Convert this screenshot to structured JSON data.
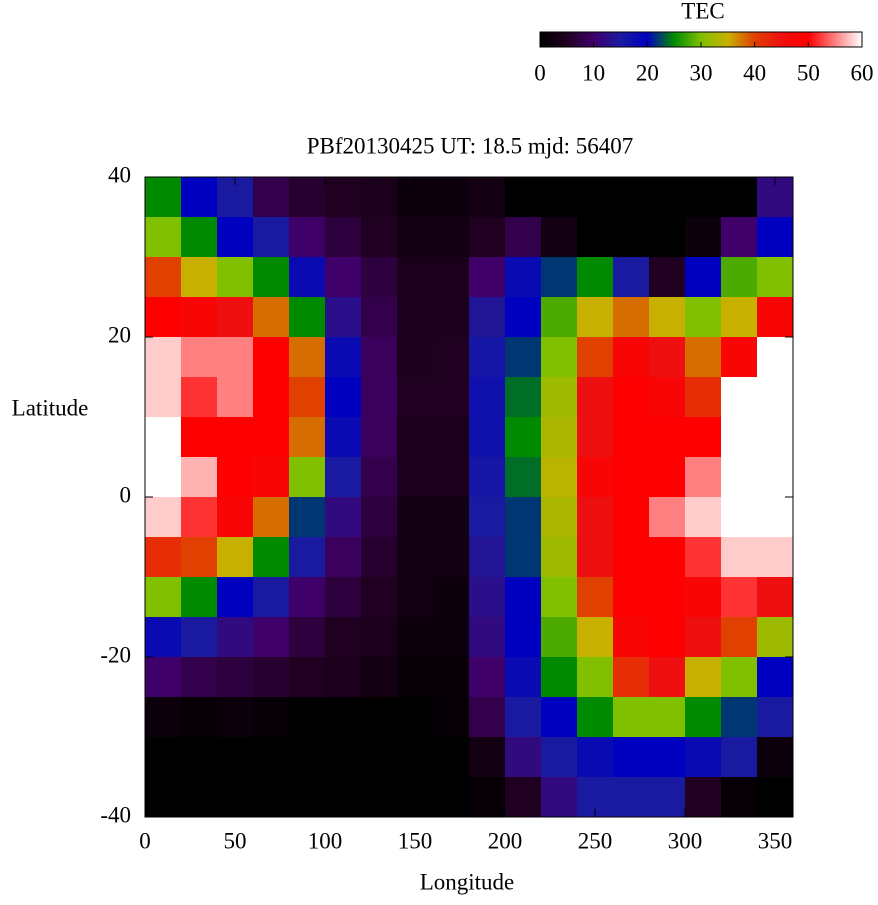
{
  "chart_data": {
    "type": "heatmap",
    "title": "PBf20130425  UT: 18.5  mjd: 56407",
    "xlabel": "Longitude",
    "ylabel": "Latitude",
    "colorbar_label": "TEC",
    "clim": [
      0,
      60
    ],
    "cticks": [
      0,
      10,
      20,
      30,
      40,
      50,
      60
    ],
    "colors": [
      "#000000",
      "#200020",
      "#40006a",
      "#1a1aa0",
      "#0000c0",
      "#008a00",
      "#80c000",
      "#c8b000",
      "#e04000",
      "#ee1010",
      "#ff0000",
      "#ff8080",
      "#ffffff"
    ],
    "xlim": [
      0,
      360
    ],
    "ylim": [
      -40,
      40
    ],
    "xticks": [
      0,
      50,
      100,
      150,
      200,
      250,
      300,
      350
    ],
    "yticks": [
      -40,
      -20,
      0,
      20,
      40
    ],
    "x": [
      10,
      30,
      50,
      70,
      90,
      110,
      130,
      150,
      170,
      190,
      210,
      230,
      250,
      270,
      290,
      310,
      330,
      350
    ],
    "y": [
      37.5,
      32.5,
      27.5,
      22.5,
      17.5,
      12.5,
      7.5,
      2.5,
      -2.5,
      -7.5,
      -12.5,
      -17.5,
      -22.5,
      -27.5,
      -32.5,
      -37.5
    ],
    "z": [
      [
        25,
        20,
        15,
        8,
        6,
        5,
        4,
        2,
        2,
        3,
        0,
        0,
        0,
        0,
        0,
        0,
        0,
        12
      ],
      [
        30,
        25,
        20,
        15,
        10,
        7,
        5,
        3,
        3,
        5,
        8,
        3,
        0,
        0,
        0,
        2,
        10,
        20
      ],
      [
        40,
        35,
        30,
        25,
        18,
        10,
        7,
        4,
        4,
        10,
        18,
        22,
        25,
        15,
        5,
        20,
        28,
        30
      ],
      [
        50,
        48,
        45,
        38,
        25,
        13,
        8,
        4,
        4,
        14,
        20,
        28,
        35,
        38,
        35,
        30,
        35,
        48
      ],
      [
        58,
        55,
        55,
        50,
        38,
        18,
        9,
        4,
        5,
        16,
        22,
        30,
        40,
        48,
        45,
        38,
        48,
        60
      ],
      [
        58,
        52,
        55,
        50,
        40,
        20,
        9,
        5,
        5,
        17,
        24,
        32,
        45,
        50,
        48,
        42,
        60,
        60
      ],
      [
        60,
        50,
        50,
        50,
        38,
        18,
        9,
        4,
        4,
        17,
        25,
        33,
        45,
        50,
        50,
        50,
        60,
        60
      ],
      [
        60,
        57,
        50,
        48,
        30,
        15,
        8,
        4,
        4,
        16,
        24,
        34,
        48,
        50,
        50,
        55,
        60,
        60
      ],
      [
        58,
        52,
        48,
        38,
        22,
        12,
        7,
        3,
        3,
        15,
        22,
        33,
        45,
        50,
        55,
        58,
        60,
        60
      ],
      [
        42,
        40,
        35,
        25,
        15,
        9,
        6,
        3,
        3,
        14,
        22,
        32,
        45,
        50,
        50,
        52,
        58,
        58
      ],
      [
        30,
        25,
        20,
        15,
        10,
        7,
        5,
        3,
        2,
        13,
        20,
        30,
        40,
        50,
        50,
        48,
        52,
        45
      ],
      [
        18,
        15,
        12,
        10,
        7,
        5,
        4,
        2,
        2,
        12,
        20,
        28,
        35,
        48,
        50,
        45,
        40,
        32
      ],
      [
        10,
        8,
        7,
        6,
        5,
        4,
        3,
        1,
        1,
        10,
        18,
        25,
        30,
        42,
        45,
        35,
        30,
        20
      ],
      [
        2,
        1,
        2,
        1,
        0,
        0,
        0,
        0,
        1,
        8,
        15,
        20,
        25,
        30,
        30,
        25,
        22,
        15
      ],
      [
        0,
        0,
        0,
        0,
        0,
        0,
        0,
        0,
        0,
        3,
        12,
        15,
        18,
        20,
        20,
        18,
        15,
        2
      ],
      [
        0,
        0,
        0,
        0,
        0,
        0,
        0,
        0,
        0,
        1,
        5,
        12,
        15,
        15,
        15,
        5,
        1,
        0
      ]
    ]
  }
}
